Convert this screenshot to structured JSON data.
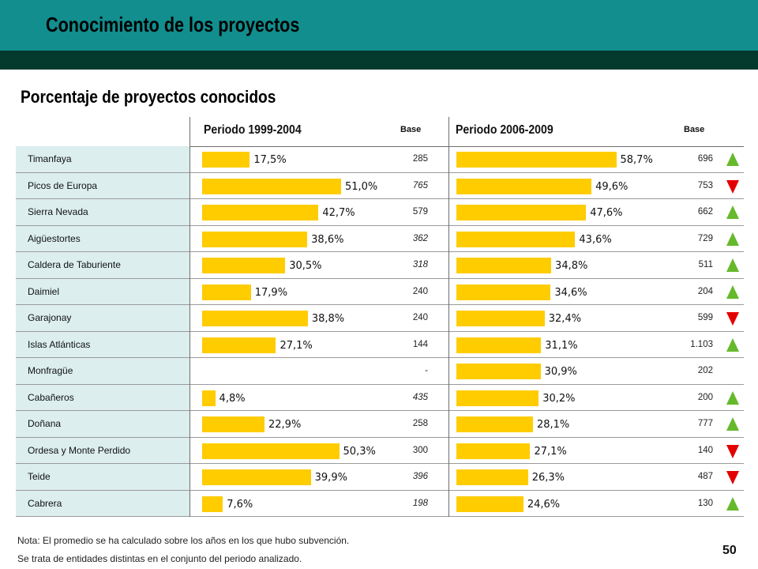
{
  "header": {
    "title": "Conocimiento de los proyectos"
  },
  "subtitle": "Porcentaje de proyectos conocidos",
  "table": {
    "base_label": "Base"
  },
  "chart_data": {
    "type": "bar",
    "orientation": "horizontal",
    "unit": "%",
    "categories": [
      "Timanfaya",
      "Picos de Europa",
      "Sierra Nevada",
      "Aigüestortes",
      "Caldera de Taburiente",
      "Daimiel",
      "Garajonay",
      "Islas Atlánticas",
      "Monfragüe",
      "Cabañeros",
      "Doñana",
      "Ordesa y Monte Perdido",
      "Teide",
      "Cabrera"
    ],
    "series": [
      {
        "name": "Periodo 1999-2004",
        "values": [
          17.5,
          51.0,
          42.7,
          38.6,
          30.5,
          17.9,
          38.8,
          27.1,
          null,
          4.8,
          22.9,
          50.3,
          39.9,
          7.6
        ],
        "base": [
          "285",
          "765",
          "579",
          "362",
          "318",
          "240",
          "240",
          "144",
          "-",
          "435",
          "258",
          "300",
          "396",
          "198"
        ],
        "base_italic": [
          false,
          true,
          false,
          true,
          true,
          false,
          false,
          false,
          false,
          true,
          false,
          false,
          true,
          true
        ]
      },
      {
        "name": "Periodo 2006-2009",
        "values": [
          58.7,
          49.6,
          47.6,
          43.6,
          34.8,
          34.6,
          32.4,
          31.1,
          30.9,
          30.2,
          28.1,
          27.1,
          26.3,
          24.6
        ],
        "base": [
          "696",
          "753",
          "662",
          "729",
          "511",
          "204",
          "599",
          "1.103",
          "202",
          "200",
          "777",
          "140",
          "487",
          "130"
        ]
      }
    ],
    "trend": [
      "up",
      "down",
      "up",
      "up",
      "up",
      "up",
      "down",
      "up",
      null,
      "up",
      "up",
      "down",
      "down",
      "up"
    ]
  },
  "notes": [
    "Nota: El promedio se ha calculado sobre los años en los que hubo subvención.",
    "Se trata de entidades distintas en el conjunto del periodo analizado."
  ],
  "page_number": "50",
  "colors": {
    "band": "#128e8e",
    "dark_band": "#043a2d",
    "bar": "#ffcc00",
    "name_cell": "#dceeee",
    "trend_up": "#66b92c",
    "trend_down": "#e30000"
  }
}
